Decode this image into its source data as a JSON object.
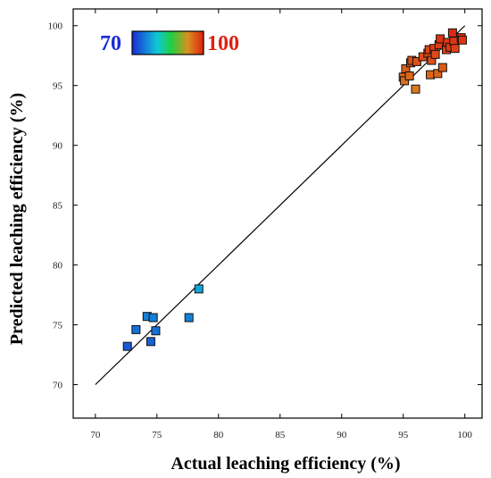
{
  "chart_data": {
    "type": "scatter",
    "title": "",
    "xlabel": "Actual leaching efficiency (%)",
    "ylabel": "Predicted leaching efficiency (%)",
    "xlim": [
      68.2,
      101.4
    ],
    "ylim": [
      67.2,
      101.4
    ],
    "xticks": [
      70,
      75,
      80,
      85,
      90,
      95,
      100
    ],
    "yticks": [
      70,
      75,
      80,
      85,
      90,
      95,
      100
    ],
    "grid": false,
    "legend": "none",
    "colorbar": {
      "min_label": "70",
      "max_label": "100",
      "min_color": "#1a2bd6",
      "max_color": "#e02010",
      "placement": "top-left"
    },
    "reference_line": {
      "from": [
        70,
        70
      ],
      "to": [
        100,
        100
      ]
    },
    "points": [
      {
        "x": 72.6,
        "y": 73.2
      },
      {
        "x": 73.3,
        "y": 74.6
      },
      {
        "x": 74.2,
        "y": 75.7
      },
      {
        "x": 74.5,
        "y": 73.6
      },
      {
        "x": 74.7,
        "y": 75.6
      },
      {
        "x": 74.9,
        "y": 74.5
      },
      {
        "x": 77.6,
        "y": 75.6
      },
      {
        "x": 78.4,
        "y": 78.0
      },
      {
        "x": 95.0,
        "y": 95.7
      },
      {
        "x": 95.1,
        "y": 95.4
      },
      {
        "x": 95.2,
        "y": 96.4
      },
      {
        "x": 95.5,
        "y": 95.8
      },
      {
        "x": 95.6,
        "y": 96.9
      },
      {
        "x": 95.7,
        "y": 97.1
      },
      {
        "x": 96.0,
        "y": 94.7
      },
      {
        "x": 96.1,
        "y": 97.0
      },
      {
        "x": 96.6,
        "y": 97.4
      },
      {
        "x": 97.0,
        "y": 97.7
      },
      {
        "x": 97.1,
        "y": 98.0
      },
      {
        "x": 97.2,
        "y": 95.9
      },
      {
        "x": 97.3,
        "y": 97.1
      },
      {
        "x": 97.5,
        "y": 98.1
      },
      {
        "x": 97.6,
        "y": 97.6
      },
      {
        "x": 97.8,
        "y": 96.0
      },
      {
        "x": 97.9,
        "y": 98.4
      },
      {
        "x": 98.0,
        "y": 98.9
      },
      {
        "x": 98.2,
        "y": 96.5
      },
      {
        "x": 98.5,
        "y": 98.0
      },
      {
        "x": 98.6,
        "y": 98.6
      },
      {
        "x": 98.8,
        "y": 98.2
      },
      {
        "x": 99.0,
        "y": 99.4
      },
      {
        "x": 99.1,
        "y": 98.7
      },
      {
        "x": 99.2,
        "y": 98.1
      },
      {
        "x": 99.7,
        "y": 99.0
      },
      {
        "x": 99.8,
        "y": 98.8
      }
    ]
  }
}
